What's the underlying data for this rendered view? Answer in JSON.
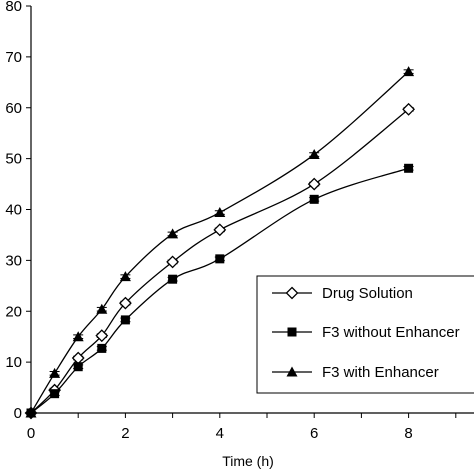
{
  "chart_data": {
    "type": "line",
    "title": "",
    "xlabel": "Time (h)",
    "ylabel": "",
    "xlim": [
      0,
      10
    ],
    "ylim": [
      0,
      80
    ],
    "xticks": [
      "0",
      "2",
      "4",
      "6",
      "8"
    ],
    "yticks": [
      "0",
      "10",
      "20",
      "30",
      "40",
      "50",
      "60",
      "70",
      "80"
    ],
    "grid": false,
    "legend_position": "bottom-right",
    "x": [
      0,
      0.5,
      1,
      1.5,
      2,
      3,
      4,
      6,
      8
    ],
    "series": [
      {
        "name": "Drug Solution",
        "marker": "open-diamond",
        "values": [
          0,
          4.5,
          10.8,
          15.2,
          21.6,
          29.7,
          36.0,
          45.0,
          59.7
        ]
      },
      {
        "name": "F3 without Enhancer",
        "marker": "filled-square",
        "values": [
          0,
          3.8,
          9.1,
          12.7,
          18.3,
          26.3,
          30.3,
          42.0,
          48.1
        ]
      },
      {
        "name": "F3 with Enhancer",
        "marker": "filled-triangle",
        "values": [
          0,
          7.8,
          15.0,
          20.4,
          26.8,
          35.2,
          39.4,
          50.8,
          67.1
        ]
      }
    ],
    "colors": {
      "line": "#000000",
      "marker": "#000000",
      "fill_open": "#ffffff"
    }
  }
}
